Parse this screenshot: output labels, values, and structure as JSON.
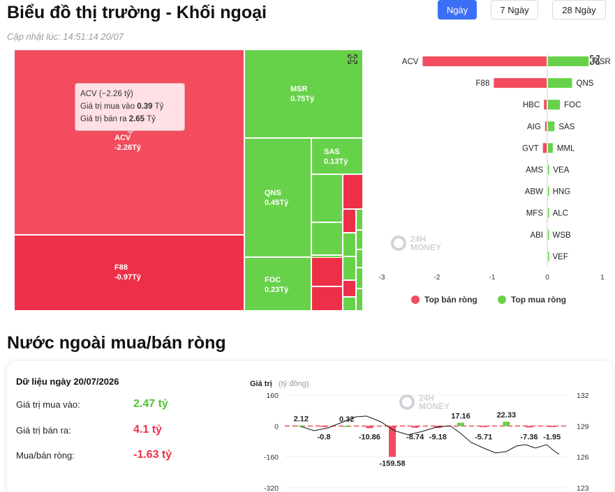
{
  "page": {
    "title": "Biểu đồ thị trường - Khối ngoại",
    "updated": "Cập nhật lúc: 14:51:14 20/07"
  },
  "tabs": [
    {
      "label": "Ngày",
      "active": true
    },
    {
      "label": "7 Ngày",
      "active": false
    },
    {
      "label": "28 Ngày",
      "active": false
    }
  ],
  "colors": {
    "sell": "#f24c5e",
    "buy": "#68d14a",
    "accent": "#3b6ff5"
  },
  "treemap": {
    "labels": [
      {
        "ticker": "ACV",
        "value": "-2.26Tỷ"
      },
      {
        "ticker": "F88",
        "value": "-0.97Tỷ"
      },
      {
        "ticker": "MSR",
        "value": "0.75Tỷ"
      },
      {
        "ticker": "QNS",
        "value": "0.45Tỷ"
      },
      {
        "ticker": "SAS",
        "value": "0.13Tỷ"
      },
      {
        "ticker": "FOC",
        "value": "0.23Tỷ"
      }
    ],
    "tooltip": {
      "title": "ACV (−2.26 tỷ)",
      "buy_label": "Giá trị mua vào",
      "buy_value": "0.39",
      "sell_label": "Giá trị bán ra",
      "sell_value": "2.65",
      "unit": "Tỷ"
    },
    "expand_icon": "expand-icon"
  },
  "chart_data": [
    {
      "type": "bar",
      "title": "",
      "sell_tickers": [
        "ACV",
        "F88",
        "HBC",
        "AIG",
        "GVT",
        "AMS",
        "ABW",
        "MFS",
        "ABI",
        ""
      ],
      "buy_tickers": [
        "MSR",
        "QNS",
        "FOC",
        "SAS",
        "MML",
        "VEA",
        "HNG",
        "ALC",
        "WSB",
        "VEF"
      ],
      "series": [
        {
          "name": "Top bán ròng",
          "values": [
            -2.26,
            -0.97,
            -0.06,
            -0.04,
            -0.08,
            0,
            0,
            0,
            0,
            0
          ]
        },
        {
          "name": "Top mua ròng",
          "values": [
            0.75,
            0.45,
            0.23,
            0.13,
            0.1,
            0.03,
            0.02,
            0.02,
            0.01,
            0.005
          ]
        }
      ],
      "x_ticks": [
        "-3",
        "-2",
        "-1",
        "0",
        "1"
      ],
      "xlim": [
        -3,
        1
      ],
      "legend": "bottom"
    },
    {
      "type": "bar",
      "title": "",
      "ylabel": "Giá trị",
      "ylabel_unit": "(tỷ đồng)",
      "values": [
        2.12,
        -0.8,
        0.32,
        -10.86,
        -159.58,
        -8.74,
        -9.18,
        17.16,
        -5.71,
        22.33,
        -7.36,
        -1.95
      ],
      "value_labels": [
        "2.12",
        "-0.8",
        "0.32",
        "-10.86",
        "-159.58",
        "-8.74",
        "-9.18",
        "17.16",
        "-5.71",
        "22.33",
        "-7.36",
        "-1.95"
      ],
      "y_ticks_left": [
        "160",
        "0",
        "-160",
        "-320"
      ],
      "ylim": [
        -320,
        160
      ],
      "y_ticks_right": [
        "132",
        "129",
        "126",
        "123"
      ],
      "y2lim": [
        123,
        132
      ]
    }
  ],
  "net": {
    "title": "Nước ngoài mua/bán ròng",
    "date_label": "Dữ liệu ngày 20/07/2026",
    "buy_label": "Giá trị mua vào:",
    "buy_value": "2.47 tỷ",
    "sell_label": "Giá trị bán ra:",
    "sell_value": "4.1 tỷ",
    "net_label": "Mua/bán ròng:",
    "net_value": "-1.63 tỷ"
  },
  "watermark": {
    "line1": "24H",
    "line2": "MONEY"
  }
}
